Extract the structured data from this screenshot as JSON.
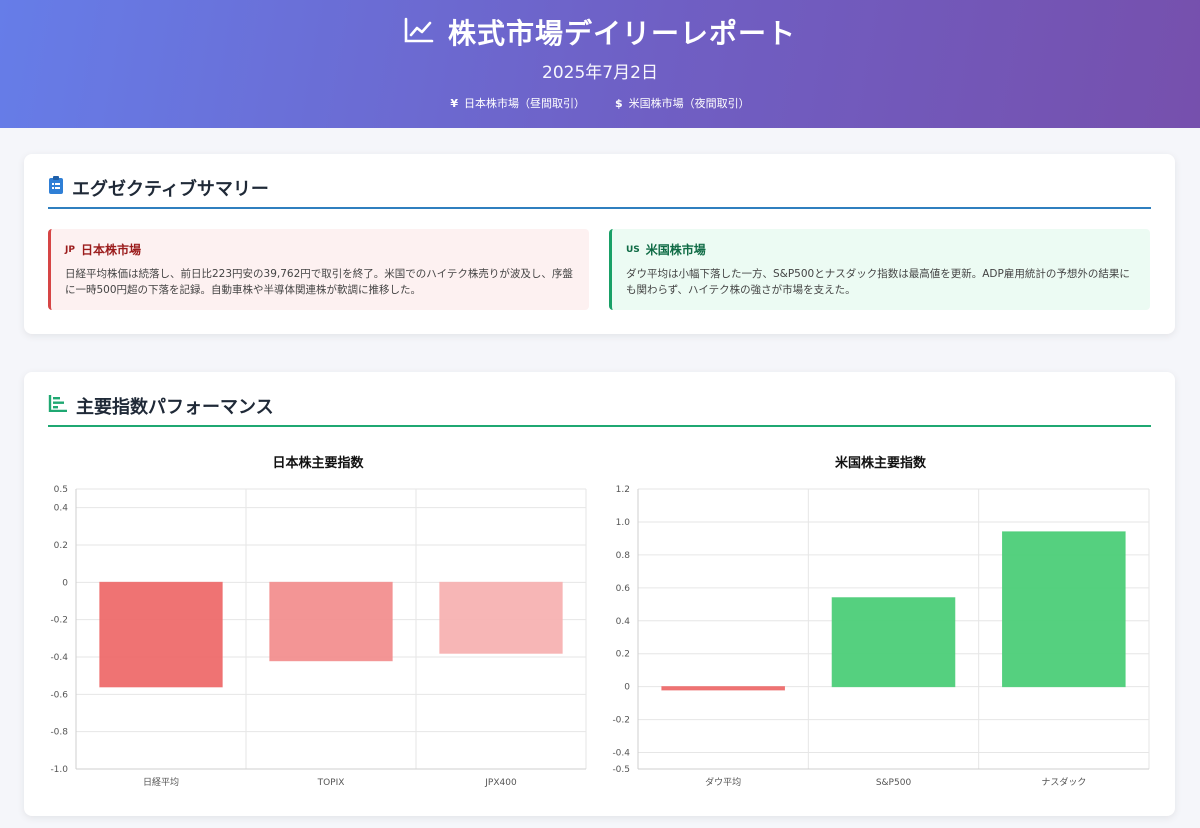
{
  "header": {
    "title": "株式市場デイリーレポート",
    "date": "2025年7月2日",
    "markets": [
      {
        "symbol": "¥",
        "label": "日本株市場（昼間取引）"
      },
      {
        "symbol": "$",
        "label": "米国株市場（夜間取引）"
      }
    ]
  },
  "summary": {
    "title": "エグゼクティブサマリー",
    "jp": {
      "flag": "JP",
      "title": "日本株市場",
      "body": "日経平均株価は続落し、前日比223円安の39,762円で取引を終了。米国でのハイテク株売りが波及し、序盤に一時500円超の下落を記録。自動車株や半導体関連株が軟調に推移した。"
    },
    "us": {
      "flag": "US",
      "title": "米国株市場",
      "body": "ダウ平均は小幅下落した一方、S&P500とナスダック指数は最高値を更新。ADP雇用統計の予想外の結果にも関わらず、ハイテク株の強さが市場を支えた。"
    }
  },
  "performance": {
    "title": "主要指数パフォーマンス"
  },
  "chart_data": [
    {
      "type": "bar",
      "title": "日本株主要指数",
      "categories": [
        "日経平均",
        "TOPIX",
        "JPX400"
      ],
      "values": [
        -0.56,
        -0.42,
        -0.38
      ],
      "colors": [
        "#ee6b6b",
        "#f28f8f",
        "#f7b2b2"
      ],
      "ylim": [
        -1.0,
        0.5
      ],
      "yticks": [
        "0.5",
        "0.4",
        "0.2",
        "0",
        "-0.2",
        "-0.4",
        "-0.6",
        "-0.8",
        "-1.0"
      ],
      "ytick_values": [
        0.5,
        0.4,
        0.2,
        0,
        -0.2,
        -0.4,
        -0.6,
        -0.8,
        -1.0
      ],
      "grid": true,
      "legend": "none"
    },
    {
      "type": "bar",
      "title": "米国株主要指数",
      "categories": [
        "ダウ平均",
        "S&P500",
        "ナスダック"
      ],
      "values": [
        -0.02,
        0.54,
        0.94
      ],
      "colors": [
        "#ee6b6b",
        "#4ccd78",
        "#4ccd78"
      ],
      "ylim": [
        -0.5,
        1.2
      ],
      "yticks": [
        "1.2",
        "1.0",
        "0.8",
        "0.6",
        "0.4",
        "0.2",
        "0",
        "-0.2",
        "-0.4",
        "-0.5"
      ],
      "ytick_values": [
        1.2,
        1.0,
        0.8,
        0.6,
        0.4,
        0.2,
        0,
        -0.2,
        -0.4,
        -0.5
      ],
      "grid": true,
      "legend": "none"
    }
  ]
}
